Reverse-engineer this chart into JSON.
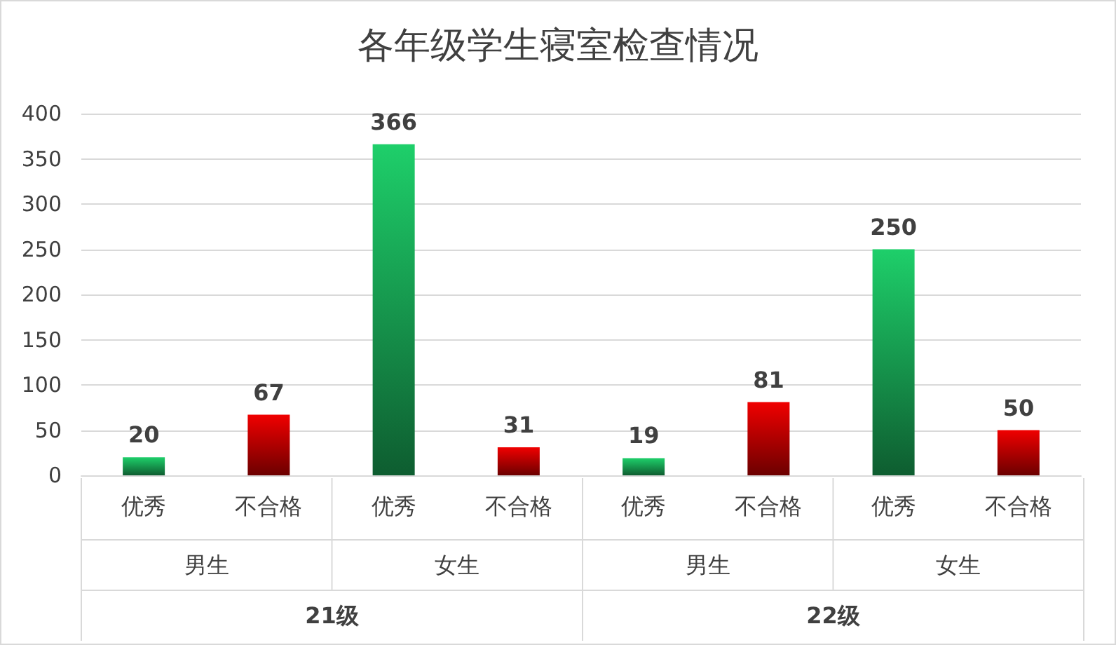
{
  "chart_data": {
    "type": "bar",
    "title": "各年级学生寝室检查情况",
    "categories": [
      "优秀",
      "不合格",
      "优秀",
      "不合格",
      "优秀",
      "不合格",
      "优秀",
      "不合格"
    ],
    "values": [
      20,
      67,
      366,
      31,
      19,
      81,
      250,
      50
    ],
    "colors": [
      "#1ecf6a",
      "#f00000",
      "#1ecf6a",
      "#f00000",
      "#1ecf6a",
      "#f00000",
      "#1ecf6a",
      "#f00000"
    ],
    "annotations": [
      "男生",
      "女生",
      "男生",
      "女生",
      "21级",
      "22级"
    ],
    "ylim": [
      0,
      400
    ],
    "yticks": [
      0,
      50,
      100,
      150,
      200,
      250,
      300,
      350,
      400
    ],
    "grid": "y",
    "data_labels": true
  }
}
